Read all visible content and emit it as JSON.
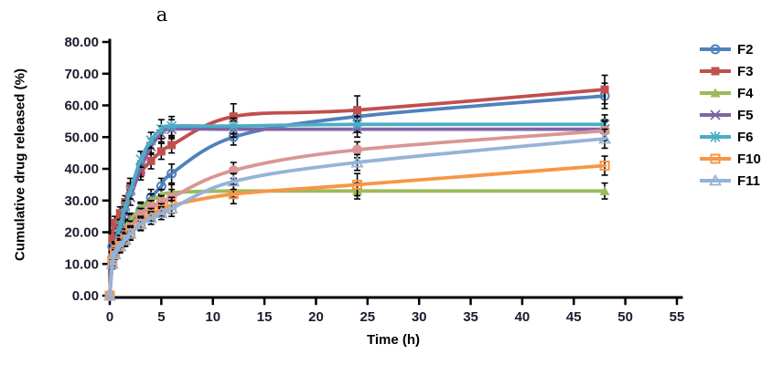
{
  "figure": {
    "panel_label": "a"
  },
  "colors": {
    "axis": "#000000",
    "tick_label": "#1b1b2f",
    "error_bar": "#000000"
  },
  "chart_data": {
    "type": "line",
    "title": "a",
    "xlabel": "Time (h)",
    "ylabel": "Cumulative drug released (%)",
    "xlim": [
      0,
      55
    ],
    "ylim": [
      0,
      80
    ],
    "xticks": [
      0,
      5,
      10,
      15,
      20,
      25,
      30,
      35,
      40,
      45,
      50,
      55
    ],
    "xtick_labels": [
      "0",
      "5",
      "10",
      "15",
      "20",
      "25",
      "30",
      "35",
      "40",
      "45",
      "50",
      "55"
    ],
    "yticks": [
      0,
      10,
      20,
      30,
      40,
      50,
      60,
      70,
      80
    ],
    "ytick_labels": [
      "0.00",
      "10.00",
      "20.00",
      "30.00",
      "40.00",
      "50.00",
      "60.00",
      "70.00",
      "80.00"
    ],
    "grid": false,
    "smooth_lines": true,
    "error_bars": true,
    "legend_position": "right",
    "x": [
      0,
      0.25,
      0.5,
      1,
      1.5,
      2,
      3,
      4,
      5,
      6,
      12,
      24,
      48
    ],
    "series": [
      {
        "id": "F2",
        "name": "F2",
        "in_legend": true,
        "color": "#4F81BD",
        "marker": "circle-open",
        "values": [
          0,
          15.5,
          17.5,
          19.5,
          21.5,
          23.5,
          27,
          31,
          34.5,
          38.5,
          50,
          56.5,
          63
        ],
        "errors": [
          0,
          2,
          2,
          2,
          2,
          2,
          2,
          2.5,
          2.5,
          3,
          2.5,
          3,
          4
        ]
      },
      {
        "id": "F3",
        "name": "F3",
        "in_legend": true,
        "color": "#C0504D",
        "marker": "square-filled",
        "values": [
          0,
          18,
          23,
          26,
          29.5,
          34.5,
          39,
          42.5,
          45.5,
          47.5,
          56.5,
          58.5,
          65
        ],
        "errors": [
          0,
          2,
          2,
          2,
          2,
          2.5,
          2.5,
          2.5,
          2.5,
          2.5,
          4,
          4.5,
          4.5
        ]
      },
      {
        "id": "F4",
        "name": "F4",
        "in_legend": true,
        "color": "#9BBB59",
        "marker": "triangle-filled",
        "values": [
          0,
          12,
          15,
          19,
          21.5,
          24,
          27.5,
          30,
          31.5,
          32.5,
          33,
          33,
          33
        ],
        "errors": [
          0,
          1.5,
          1.5,
          2,
          2,
          2,
          2,
          2,
          2,
          2.5,
          2,
          2.5,
          2.5
        ]
      },
      {
        "id": "F5",
        "name": "F5",
        "in_legend": true,
        "color": "#8064A2",
        "marker": "x",
        "values": [
          0,
          10,
          14,
          20.5,
          26,
          31,
          40,
          47,
          51,
          52.5,
          52.5,
          52.5,
          52.5
        ],
        "errors": [
          0,
          1.5,
          2,
          2,
          2,
          2.5,
          2.5,
          2.5,
          2.5,
          3,
          2.5,
          2.5,
          3
        ]
      },
      {
        "id": "F6",
        "name": "F6",
        "in_legend": true,
        "color": "#4BACC6",
        "marker": "asterisk",
        "values": [
          0,
          11,
          15,
          22,
          28,
          33,
          43,
          49,
          52.5,
          53.5,
          53.5,
          54,
          54
        ],
        "errors": [
          0,
          1.5,
          2,
          2,
          2,
          2.5,
          2.5,
          2.5,
          3,
          3,
          2.5,
          2.5,
          3
        ]
      },
      {
        "id": "unlabeled",
        "name": "",
        "in_legend": false,
        "color": "#D99694",
        "marker": "circle-filled",
        "values": [
          0,
          12,
          14.5,
          17,
          19,
          21.5,
          25.5,
          28,
          29.5,
          31,
          39.5,
          46,
          52
        ],
        "errors": [
          0,
          1.5,
          2,
          2,
          2,
          2,
          2,
          2,
          2,
          2.5,
          2.5,
          2.5,
          3
        ]
      },
      {
        "id": "F10",
        "name": "F10",
        "in_legend": true,
        "color": "#F79646",
        "marker": "square-open",
        "values": [
          0,
          11,
          13.5,
          16,
          18,
          20,
          23,
          25.5,
          27,
          28.5,
          32,
          35,
          41
        ],
        "errors": [
          0,
          1.5,
          1.5,
          2,
          2,
          2,
          2,
          2,
          2,
          2.5,
          3,
          3.5,
          3
        ]
      },
      {
        "id": "F11",
        "name": "F11",
        "in_legend": true,
        "color": "#95B3D7",
        "marker": "triangle-open",
        "values": [
          0,
          10,
          13,
          15.5,
          17.5,
          19.5,
          22.5,
          24.5,
          26,
          27.5,
          36,
          42,
          49.5
        ],
        "errors": [
          0,
          1.5,
          1.5,
          2,
          2,
          2,
          2,
          2,
          2,
          2.5,
          2.5,
          2.5,
          3
        ]
      }
    ]
  }
}
